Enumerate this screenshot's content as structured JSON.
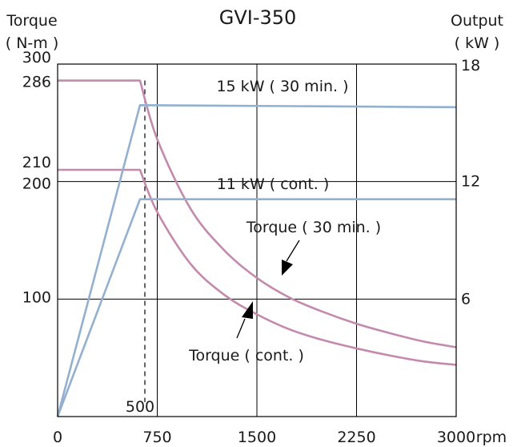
{
  "chart_data": {
    "type": "line",
    "title": "GVI-350",
    "left_axis": {
      "label_line1": "Torque",
      "label_line2": "( N-m )",
      "ticks": [
        {
          "value": 300,
          "label": "300"
        },
        {
          "value": 286,
          "label": "286"
        },
        {
          "value": 210,
          "label": "210"
        },
        {
          "value": 200,
          "label": "200"
        },
        {
          "value": 100,
          "label": "100"
        }
      ],
      "range": [
        0,
        300
      ]
    },
    "right_axis": {
      "label_line1": "Output",
      "label_line2": "( kW )",
      "ticks": [
        {
          "value": 18,
          "label": "18"
        },
        {
          "value": 12,
          "label": "12"
        },
        {
          "value": 6,
          "label": "6"
        }
      ],
      "range": [
        0,
        18
      ]
    },
    "x_axis": {
      "unit": "rpm",
      "ticks": [
        {
          "value": 0,
          "label": "0"
        },
        {
          "value": 750,
          "label": "750"
        },
        {
          "value": 1500,
          "label": "1500"
        },
        {
          "value": 2250,
          "label": "2250"
        },
        {
          "value": 3000,
          "label": "3000"
        }
      ],
      "range": [
        0,
        3000
      ],
      "marker": {
        "value": 500,
        "label": "500"
      }
    },
    "grid": true,
    "series": [
      {
        "name": "Torque ( 30 min. )",
        "axis": "left",
        "color": "#c48aad",
        "points": [
          [
            0,
            286
          ],
          [
            620,
            286
          ],
          [
            750,
            236
          ],
          [
            1000,
            177
          ],
          [
            1250,
            142
          ],
          [
            1500,
            118
          ],
          [
            1750,
            101
          ],
          [
            2000,
            89
          ],
          [
            2250,
            79
          ],
          [
            2500,
            71
          ],
          [
            2750,
            64
          ],
          [
            3000,
            59
          ]
        ]
      },
      {
        "name": "Torque ( cont. )",
        "axis": "left",
        "color": "#c48aad",
        "points": [
          [
            0,
            210
          ],
          [
            620,
            210
          ],
          [
            750,
            174
          ],
          [
            1000,
            130
          ],
          [
            1250,
            104
          ],
          [
            1500,
            87
          ],
          [
            1750,
            74
          ],
          [
            2000,
            65
          ],
          [
            2250,
            58
          ],
          [
            2500,
            52
          ],
          [
            2750,
            47
          ],
          [
            3000,
            44
          ]
        ]
      },
      {
        "name": "15 kW ( 30 min. )",
        "axis": "right",
        "color": "#93b0cf",
        "points": [
          [
            0,
            0
          ],
          [
            620,
            15.9
          ],
          [
            3000,
            15.8
          ]
        ]
      },
      {
        "name": "11 kW ( cont. )",
        "axis": "right",
        "color": "#93b0cf",
        "points": [
          [
            0,
            0
          ],
          [
            620,
            11.1
          ],
          [
            3000,
            11.1
          ]
        ]
      }
    ],
    "annotations": [
      {
        "text": "15 kW ( 30 min. )"
      },
      {
        "text": "11 kW ( cont. )"
      },
      {
        "text": "Torque ( 30 min. )"
      },
      {
        "text": "Torque ( cont. )"
      }
    ]
  }
}
